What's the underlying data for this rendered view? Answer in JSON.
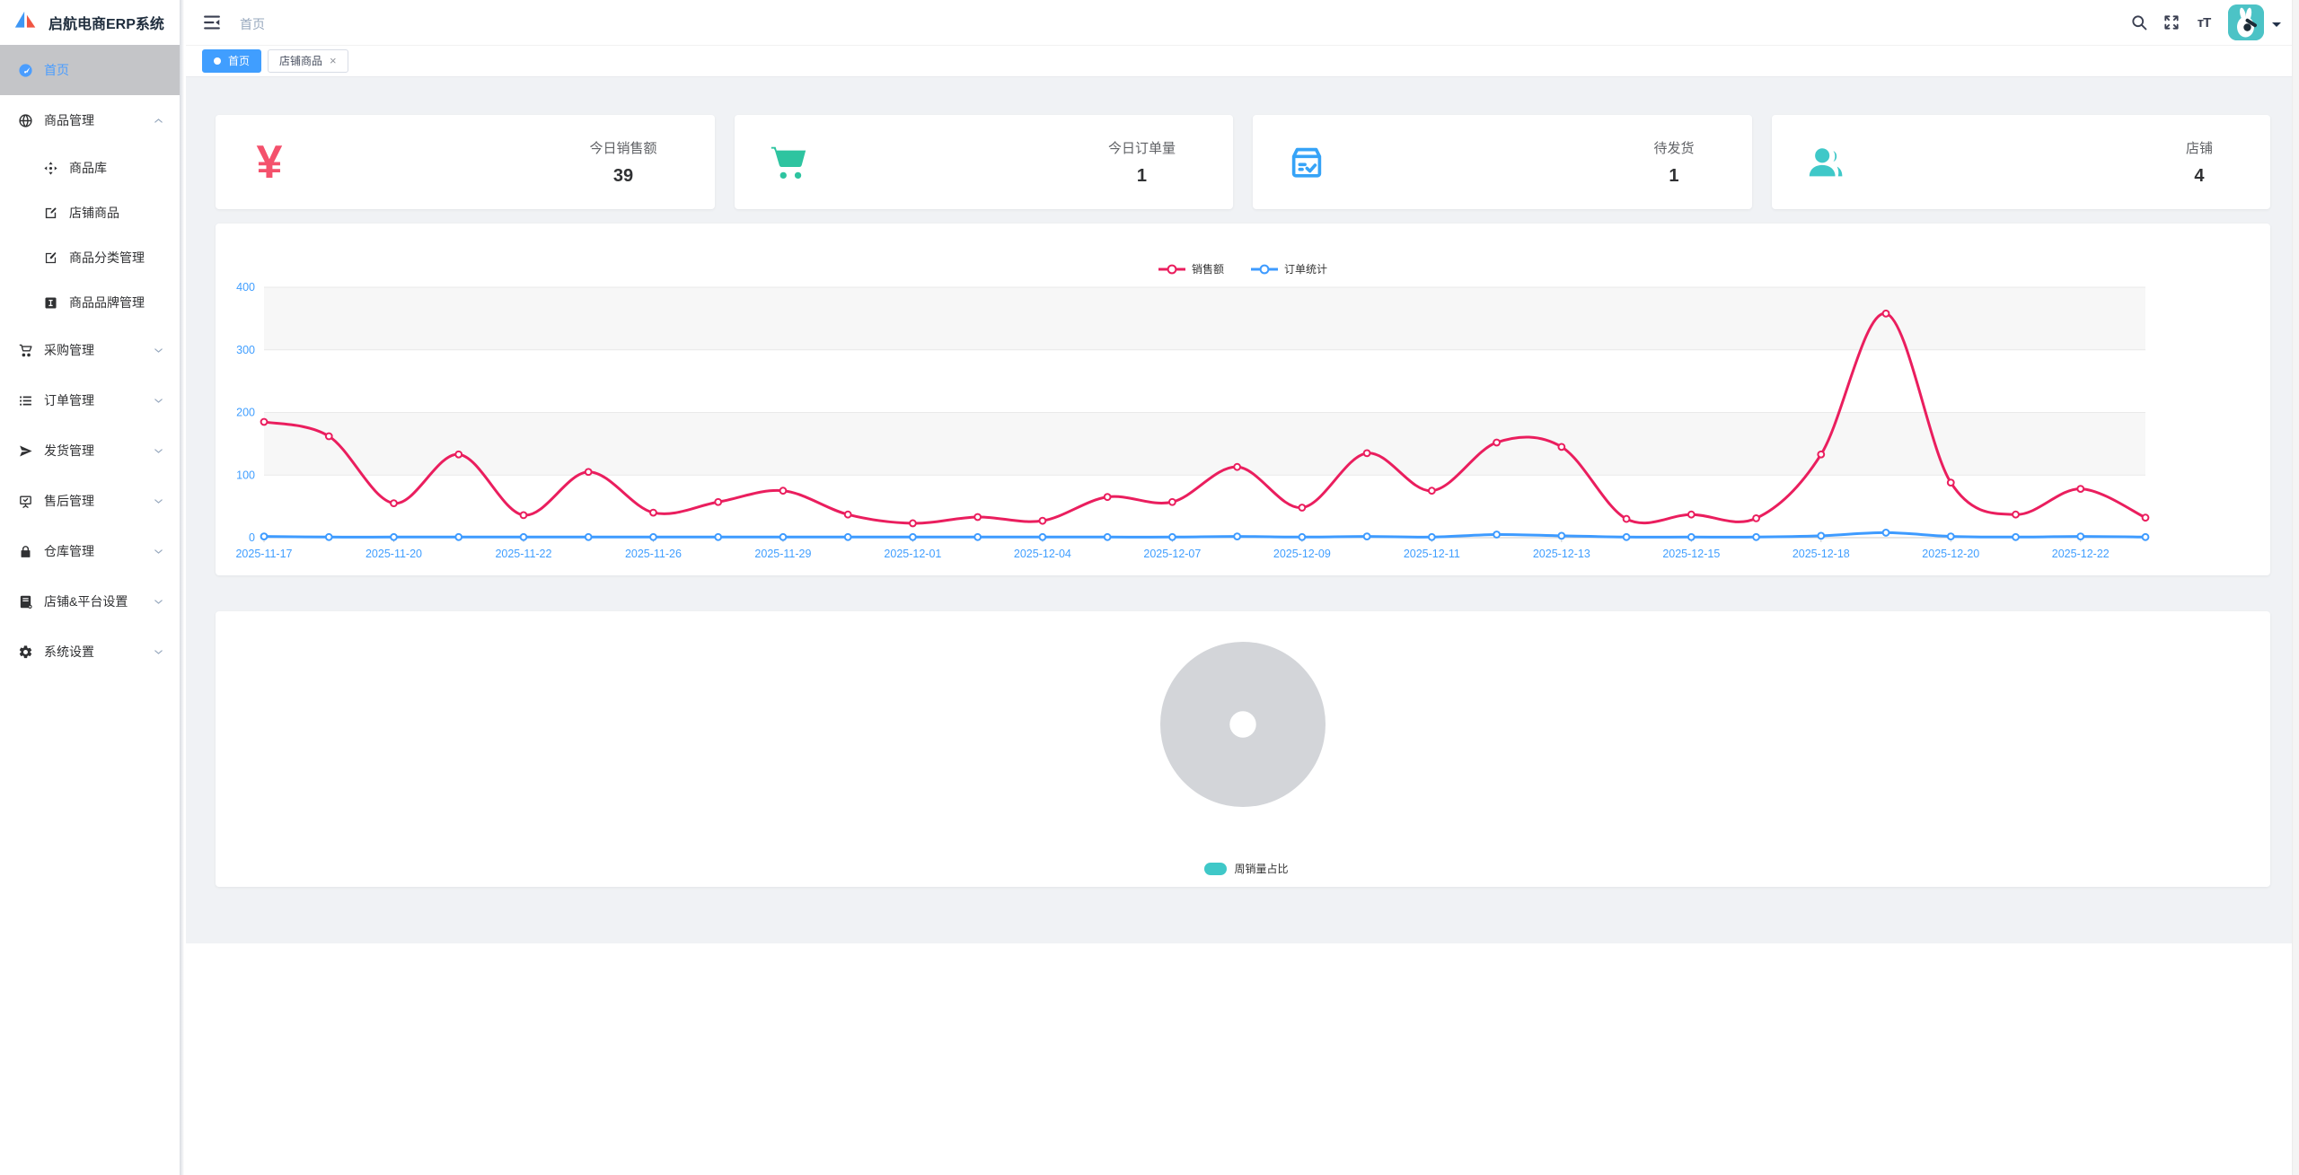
{
  "app": {
    "title": "启航电商ERP系统",
    "logo_icon": "sailboat-logo"
  },
  "header": {
    "breadcrumb": "首页",
    "icons": [
      "menu-collapse",
      "search",
      "fullscreen",
      "font-size"
    ],
    "avatar": "rabbit-avatar",
    "caret": "caret-down"
  },
  "tabs": [
    {
      "label": "首页",
      "active": true,
      "closable": false
    },
    {
      "label": "店铺商品",
      "active": false,
      "closable": true
    }
  ],
  "sidebar": {
    "items": [
      {
        "key": "home",
        "label": "首页",
        "icon": "dashboard",
        "active": true
      },
      {
        "key": "product-management",
        "label": "商品管理",
        "icon": "globe",
        "expanded": true,
        "children": [
          {
            "key": "product-library",
            "label": "商品库",
            "icon": "move"
          },
          {
            "key": "shop-products",
            "label": "店铺商品",
            "icon": "edit"
          },
          {
            "key": "product-category",
            "label": "商品分类管理",
            "icon": "edit-square"
          },
          {
            "key": "product-brand",
            "label": "商品品牌管理",
            "icon": "brand"
          }
        ]
      },
      {
        "key": "purchase-management",
        "label": "采购管理",
        "icon": "cart",
        "expanded": false
      },
      {
        "key": "order-management",
        "label": "订单管理",
        "icon": "list",
        "expanded": false
      },
      {
        "key": "shipping-management",
        "label": "发货管理",
        "icon": "send",
        "expanded": false
      },
      {
        "key": "aftersales-management",
        "label": "售后管理",
        "icon": "board-check",
        "expanded": false
      },
      {
        "key": "warehouse-management",
        "label": "仓库管理",
        "icon": "lock",
        "expanded": false
      },
      {
        "key": "shop-platform-settings",
        "label": "店铺&平台设置",
        "icon": "book",
        "expanded": false
      },
      {
        "key": "system-settings",
        "label": "系统设置",
        "icon": "gear",
        "expanded": false
      }
    ]
  },
  "stat_cards": [
    {
      "label": "今日销售额",
      "value": "39",
      "icon": "yen",
      "color": "#f4516c"
    },
    {
      "label": "今日订单量",
      "value": "1",
      "icon": "cart",
      "color": "#2ec4a0"
    },
    {
      "label": "待发货",
      "value": "1",
      "icon": "package-check",
      "color": "#36a3f7"
    },
    {
      "label": "店铺",
      "value": "4",
      "icon": "users",
      "color": "#3fc8c8"
    }
  ],
  "chart_data": [
    {
      "type": "line",
      "title": "",
      "legend": [
        "销售额",
        "订单统计"
      ],
      "legend_position": "top-center",
      "smooth": true,
      "grid": true,
      "split_area_color": "#f7f7f7",
      "gridline_color": "#e9e9e9",
      "axis_line_color": "#cccccc",
      "axis_label_color": "#409eff",
      "ylim": [
        0,
        400
      ],
      "yticks": [
        0,
        100,
        200,
        300,
        400
      ],
      "x_tick_labels": [
        "2025-11-17",
        "2025-11-20",
        "2025-11-22",
        "2025-11-26",
        "2025-11-29",
        "2025-12-01",
        "2025-12-04",
        "2025-12-07",
        "2025-12-09",
        "2025-12-11",
        "2025-12-13",
        "2025-12-15",
        "2025-12-18",
        "2025-12-20",
        "2025-12-22"
      ],
      "ticks_on_every_second_point": true,
      "series": [
        {
          "name": "销售额",
          "color": "#ea1e5e",
          "values": [
            185,
            162,
            55,
            133,
            36,
            105,
            40,
            57,
            75,
            37,
            23,
            33,
            27,
            65,
            57,
            113,
            48,
            135,
            75,
            152,
            145,
            30,
            37,
            31,
            133,
            358,
            88,
            37,
            78,
            32
          ]
        },
        {
          "name": "订单统计",
          "color": "#3e9bff",
          "values": [
            2,
            1,
            1,
            1,
            1,
            1,
            1,
            1,
            1,
            1,
            1,
            1,
            1,
            1,
            1,
            2,
            1,
            2,
            1,
            5,
            3,
            1,
            1,
            1,
            3,
            8,
            2,
            1,
            2,
            1
          ]
        }
      ]
    },
    {
      "type": "pie",
      "title": "",
      "legend": [
        "周销量占比"
      ],
      "legend_position": "bottom-center",
      "legend_swatch_color": "#3fc8c8",
      "empty_state": true,
      "placeholder_color": "#d3d5d9",
      "donut_inner_radius_ratio": 0.16,
      "slices": []
    }
  ]
}
